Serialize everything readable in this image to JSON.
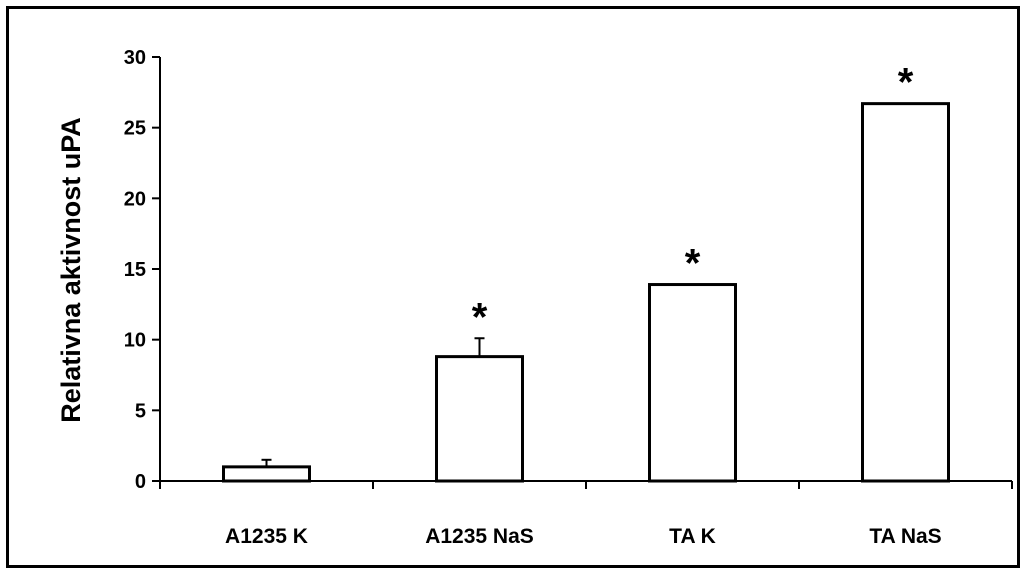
{
  "chart_data": {
    "type": "bar",
    "title": "",
    "xlabel": "",
    "ylabel": "Relativna aktivnost uPA",
    "ylim": [
      0,
      30
    ],
    "yticks": [
      0,
      5,
      10,
      15,
      20,
      25,
      30
    ],
    "ytick_labels": [
      "0",
      "5",
      "10",
      "15",
      "20",
      "25",
      "30"
    ],
    "categories": [
      "A1235 K",
      "A1235 NaS",
      "TA K",
      "TA NaS"
    ],
    "values": [
      1.0,
      8.8,
      13.9,
      26.7
    ],
    "error_bars": [
      0.5,
      1.3,
      0,
      0
    ],
    "annotations": [
      "",
      "*",
      "*",
      "*"
    ],
    "grid": false,
    "legend": "none",
    "colors": {
      "bar_fill": "#ffffff",
      "bar_stroke": "#000000",
      "axis": "#000000"
    }
  }
}
